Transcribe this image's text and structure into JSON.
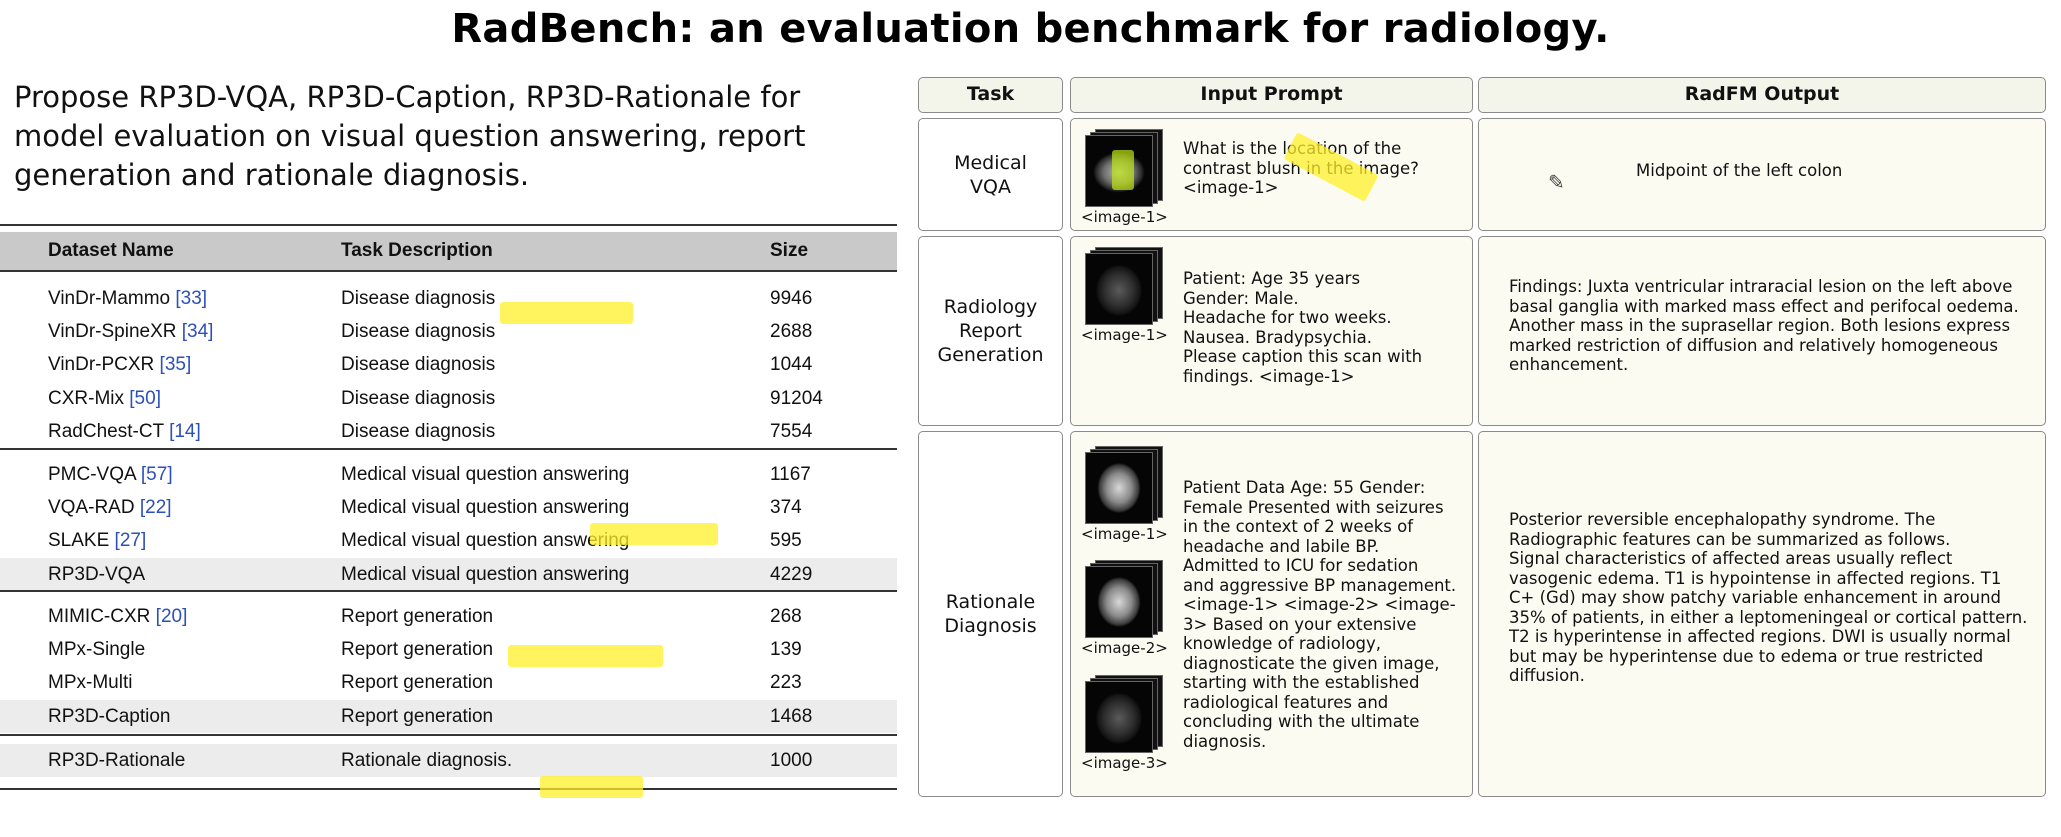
{
  "title": "RadBench: an evaluation benchmark for radiology.",
  "intro": "Propose RP3D-VQA, RP3D-Caption, RP3D-Rationale for model evaluation on visual question answering, report generation and rationale diagnosis.",
  "datasets": {
    "headers": [
      "Dataset Name",
      "Task Description",
      "Size"
    ],
    "groups": [
      [
        {
          "name": "VinDr-Mammo",
          "ref": "[33]",
          "task": "Disease diagnosis",
          "size": "9946"
        },
        {
          "name": "VinDr-SpineXR",
          "ref": "[34]",
          "task": "Disease diagnosis",
          "size": "2688"
        },
        {
          "name": "VinDr-PCXR",
          "ref": "[35]",
          "task": "Disease diagnosis",
          "size": "1044"
        },
        {
          "name": "CXR-Mix",
          "ref": "[50]",
          "task": "Disease diagnosis",
          "size": "91204"
        },
        {
          "name": "RadChest-CT",
          "ref": "[14]",
          "task": "Disease diagnosis",
          "size": "7554"
        }
      ],
      [
        {
          "name": "PMC-VQA",
          "ref": "[57]",
          "task": "Medical visual question answering",
          "size": "1167"
        },
        {
          "name": "VQA-RAD",
          "ref": "[22]",
          "task": "Medical visual question answering",
          "size": "374"
        },
        {
          "name": "SLAKE",
          "ref": "[27]",
          "task": "Medical visual question answering",
          "size": "595"
        },
        {
          "name": "RP3D-VQA",
          "ref": "",
          "task": "Medical visual question answering",
          "size": "4229",
          "shade": true
        }
      ],
      [
        {
          "name": "MIMIC-CXR",
          "ref": "[20]",
          "task": "Report generation",
          "size": "268"
        },
        {
          "name": "MPx-Single",
          "ref": "",
          "task": "Report generation",
          "size": "139"
        },
        {
          "name": "MPx-Multi",
          "ref": "",
          "task": "Report generation",
          "size": "223"
        },
        {
          "name": "RP3D-Caption",
          "ref": "",
          "task": "Report generation",
          "size": "1468",
          "shade": true
        }
      ],
      [
        {
          "name": "RP3D-Rationale",
          "ref": "",
          "task": "Rationale diagnosis.",
          "size": "1000",
          "shade": true
        }
      ]
    ]
  },
  "examples": {
    "headers": [
      "Task",
      "Input Prompt",
      "RadFM Output"
    ],
    "rows": [
      {
        "task": [
          "Medical",
          "VQA"
        ],
        "images": [
          "<image-1>"
        ],
        "prompt": [
          "What is the location of the",
          "contrast blush in the image?",
          "<image-1>"
        ],
        "output": [
          "Midpoint of the left colon"
        ]
      },
      {
        "task": [
          "Radiology",
          "Report",
          "Generation"
        ],
        "images": [
          "<image-1>"
        ],
        "prompt": [
          "Patient: Age 35 years",
          "Gender: Male.",
          "Headache for two weeks.",
          "Nausea. Bradypsychia.",
          "Please caption this scan with",
          "findings. <image-1>"
        ],
        "output": [
          "Findings: Juxta ventricular intraracial lesion on the left above",
          "basal ganglia with marked mass effect and perifocal oedema.",
          "Another mass in the suprasellar region. Both lesions express",
          "marked restriction of diffusion and relatively homogeneous",
          "enhancement."
        ]
      },
      {
        "task": [
          "Rationale",
          "Diagnosis"
        ],
        "images": [
          "<image-1>",
          "<image-2>",
          "<image-3>"
        ],
        "prompt": [
          "Patient Data Age: 55 Gender:",
          "Female Presented with seizures",
          "in the context of 2 weeks of",
          "headache and labile BP.",
          "Admitted to ICU for sedation",
          "and aggressive BP management.",
          "<image-1> <image-2> <image-",
          "3> Based on your extensive",
          "knowledge of radiology,",
          "diagnosticate the given image,",
          "starting with the established",
          "radiological features and",
          "concluding with the ultimate",
          "diagnosis."
        ],
        "output": [
          "Posterior reversible encephalopathy syndrome. The",
          "Radiographic features can be summarized as follows.",
          "Signal characteristics of affected areas usually reflect",
          "vasogenic edema. T1 is hypointense in affected regions. T1",
          "C+ (Gd) may show patchy variable enhancement in around",
          "35% of patients, in either a leptomeningeal or cortical pattern.",
          "T2 is hyperintense in affected regions. DWI is usually normal",
          "but may be hyperintense due to edema or true restricted",
          "diffusion."
        ]
      }
    ]
  },
  "colors": {
    "highlight": "#fff028",
    "header_shade": "#c9c9c9",
    "row_shade": "#ececec",
    "ref_link": "#2d4fb8"
  }
}
